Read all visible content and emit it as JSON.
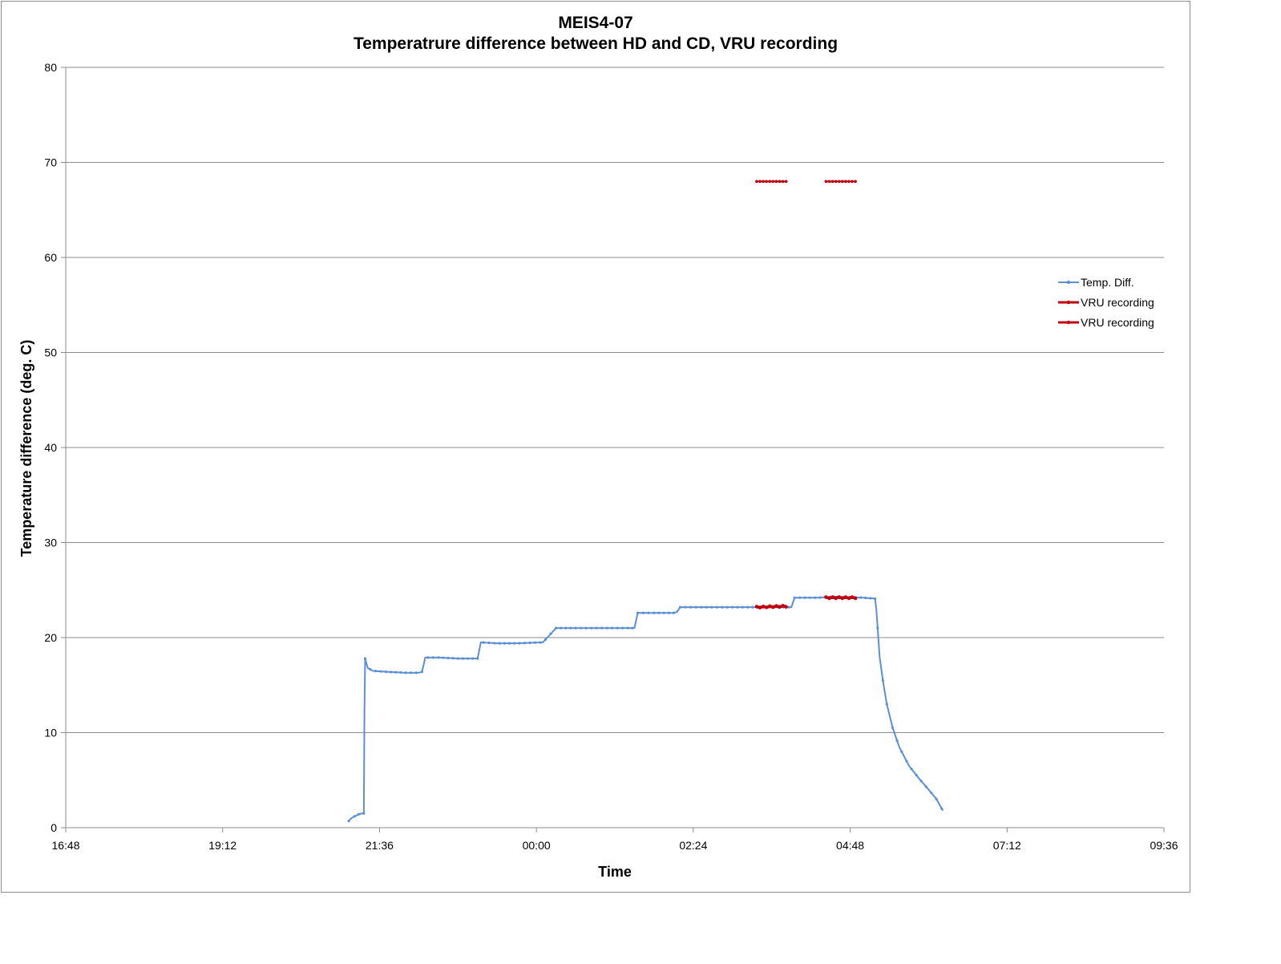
{
  "chart_data": {
    "type": "line",
    "title": "MEIS4-07",
    "subtitle": "Temperatrure difference between HD and CD, VRU recording",
    "xlabel": "Time",
    "ylabel": "Temperature difference (deg. C)",
    "ylim": [
      0,
      80
    ],
    "yticks": [
      "0",
      "10",
      "20",
      "30",
      "40",
      "50",
      "60",
      "70",
      "80"
    ],
    "xlim_hours": [
      16.8,
      33.6
    ],
    "xticks": [
      {
        "label": "16:48",
        "hour": 16.8
      },
      {
        "label": "19:12",
        "hour": 19.2
      },
      {
        "label": "21:36",
        "hour": 21.6
      },
      {
        "label": "00:00",
        "hour": 24.0
      },
      {
        "label": "02:24",
        "hour": 26.4
      },
      {
        "label": "04:48",
        "hour": 28.8
      },
      {
        "label": "07:12",
        "hour": 31.2
      },
      {
        "label": "09:36",
        "hour": 33.6
      }
    ],
    "grid": true,
    "legend_position": "right",
    "series": [
      {
        "name": "Temp. Diff.",
        "color": "#5b8fd6",
        "points": [
          [
            21.13,
            0.7
          ],
          [
            21.17,
            1.0
          ],
          [
            21.22,
            1.2
          ],
          [
            21.28,
            1.4
          ],
          [
            21.33,
            1.5
          ],
          [
            21.36,
            1.5
          ],
          [
            21.37,
            12.5
          ],
          [
            21.38,
            17.8
          ],
          [
            21.42,
            16.8
          ],
          [
            21.5,
            16.5
          ],
          [
            21.7,
            16.4
          ],
          [
            22.0,
            16.3
          ],
          [
            22.2,
            16.3
          ],
          [
            22.25,
            16.4
          ],
          [
            22.3,
            17.9
          ],
          [
            22.5,
            17.9
          ],
          [
            22.8,
            17.8
          ],
          [
            23.1,
            17.8
          ],
          [
            23.15,
            19.5
          ],
          [
            23.4,
            19.4
          ],
          [
            23.7,
            19.4
          ],
          [
            24.1,
            19.5
          ],
          [
            24.3,
            21.0
          ],
          [
            24.6,
            21.0
          ],
          [
            25.0,
            21.0
          ],
          [
            25.4,
            21.0
          ],
          [
            25.5,
            21.0
          ],
          [
            25.55,
            22.6
          ],
          [
            25.8,
            22.6
          ],
          [
            26.1,
            22.6
          ],
          [
            26.15,
            22.7
          ],
          [
            26.2,
            23.2
          ],
          [
            26.6,
            23.2
          ],
          [
            27.0,
            23.2
          ],
          [
            27.5,
            23.2
          ],
          [
            27.9,
            23.2
          ],
          [
            27.95,
            24.2
          ],
          [
            28.3,
            24.2
          ],
          [
            28.6,
            24.3
          ],
          [
            29.0,
            24.2
          ],
          [
            29.18,
            24.1
          ],
          [
            29.2,
            23.0
          ],
          [
            29.22,
            21.0
          ],
          [
            29.25,
            18.0
          ],
          [
            29.3,
            15.5
          ],
          [
            29.36,
            13.0
          ],
          [
            29.45,
            10.5
          ],
          [
            29.55,
            8.5
          ],
          [
            29.7,
            6.5
          ],
          [
            29.85,
            5.2
          ],
          [
            30.0,
            4.0
          ],
          [
            30.12,
            3.0
          ],
          [
            30.2,
            2.0
          ],
          [
            30.22,
            1.8
          ]
        ]
      },
      {
        "name": "VRU recording",
        "color": "#c0000f",
        "points": [
          [
            27.37,
            23.2
          ],
          [
            27.82,
            23.3
          ]
        ],
        "marker_level": 68
      },
      {
        "name": "VRU recording",
        "color": "#c0000f",
        "points": [
          [
            28.43,
            24.2
          ],
          [
            28.88,
            24.2
          ]
        ],
        "marker_level": 68
      }
    ]
  }
}
